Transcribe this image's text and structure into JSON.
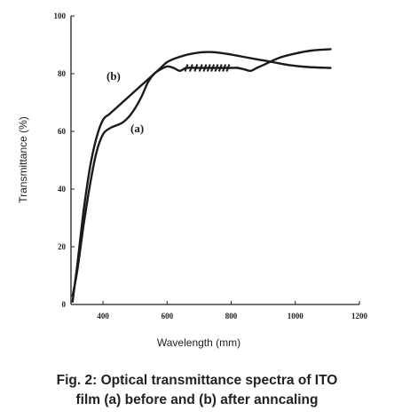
{
  "chart_data": {
    "type": "line",
    "xlabel": "Wavelength (mm)",
    "ylabel": "Transmittance (%)",
    "xlim": [
      300,
      1200
    ],
    "ylim": [
      0,
      100
    ],
    "x_ticks": [
      "400",
      "600",
      "800",
      "1000",
      "1200"
    ],
    "y_ticks": [
      "0",
      "20",
      "40",
      "60",
      "80",
      "100"
    ],
    "grid": false,
    "series": [
      {
        "name": "(a)",
        "points": [
          [
            305,
            3
          ],
          [
            320,
            12
          ],
          [
            340,
            28
          ],
          [
            360,
            42
          ],
          [
            380,
            53
          ],
          [
            400,
            59
          ],
          [
            420,
            61
          ],
          [
            440,
            62
          ],
          [
            460,
            63
          ],
          [
            480,
            65
          ],
          [
            500,
            68
          ],
          [
            520,
            72
          ],
          [
            540,
            77
          ],
          [
            560,
            80
          ],
          [
            580,
            81.5
          ],
          [
            600,
            82.5
          ],
          [
            620,
            82
          ],
          [
            640,
            81
          ],
          [
            660,
            82
          ],
          [
            700,
            82
          ],
          [
            760,
            82
          ],
          [
            800,
            82
          ],
          [
            820,
            82
          ],
          [
            840,
            81.5
          ],
          [
            860,
            81
          ],
          [
            880,
            82
          ],
          [
            900,
            83
          ],
          [
            950,
            85.5
          ],
          [
            1000,
            87
          ],
          [
            1050,
            88
          ],
          [
            1110,
            88.5
          ]
        ]
      },
      {
        "name": "(b)",
        "points": [
          [
            305,
            1
          ],
          [
            320,
            14
          ],
          [
            340,
            33
          ],
          [
            360,
            48
          ],
          [
            380,
            58
          ],
          [
            400,
            64
          ],
          [
            420,
            66
          ],
          [
            440,
            68
          ],
          [
            460,
            70
          ],
          [
            480,
            72
          ],
          [
            500,
            74
          ],
          [
            520,
            76
          ],
          [
            540,
            78
          ],
          [
            560,
            80
          ],
          [
            580,
            82
          ],
          [
            600,
            84
          ],
          [
            630,
            85.5
          ],
          [
            680,
            87
          ],
          [
            730,
            87.5
          ],
          [
            780,
            87
          ],
          [
            830,
            86
          ],
          [
            880,
            85
          ],
          [
            930,
            84
          ],
          [
            980,
            83
          ],
          [
            1040,
            82.3
          ],
          [
            1110,
            82
          ]
        ]
      }
    ]
  },
  "caption": {
    "line1": "Fig. 2: Optical transmittance spectra of ITO",
    "line2": "film (a) before and (b) after anncaling"
  }
}
